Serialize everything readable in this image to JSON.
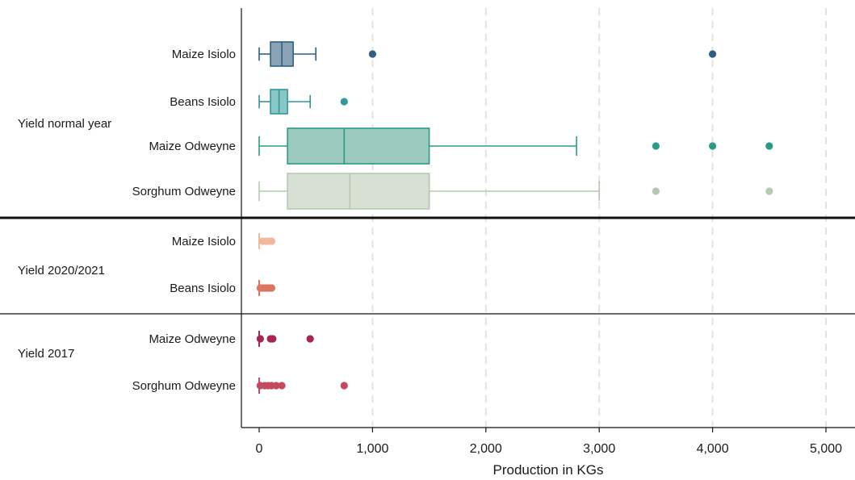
{
  "chart_data": {
    "type": "box",
    "orientation": "horizontal",
    "title": "",
    "xlabel": "Production in KGs",
    "ylabel": "",
    "xlim": [
      0,
      5000
    ],
    "xticks": [
      0,
      1000,
      2000,
      3000,
      4000,
      5000
    ],
    "xtick_labels": [
      "0",
      "1,000",
      "2,000",
      "3,000",
      "4,000",
      "5,000"
    ],
    "grid": "vertical dashed",
    "legend": "none",
    "groups": [
      {
        "name": "Yield normal year",
        "series": [
          {
            "name": "Maize Isiolo",
            "color": "#2e5f80",
            "fill": "#8aa3b6",
            "min": 0,
            "q1": 100,
            "median": 200,
            "q3": 300,
            "max": 500,
            "outliers": [
              1000,
              4000
            ]
          },
          {
            "name": "Beans Isiolo",
            "color": "#33979b",
            "fill": "#89c8c6",
            "min": 0,
            "q1": 100,
            "median": 175,
            "q3": 250,
            "max": 450,
            "outliers": [
              750
            ]
          },
          {
            "name": "Maize Odweyne",
            "color": "#2b9b85",
            "fill": "#9dcabf",
            "min": 0,
            "q1": 250,
            "median": 750,
            "q3": 1500,
            "max": 2800,
            "outliers": [
              3500,
              4000,
              4500
            ]
          },
          {
            "name": "Sorghum Odweyne",
            "color": "#b4c9b0",
            "fill": "#d8e0d3",
            "min": 0,
            "q1": 250,
            "median": 800,
            "q3": 1500,
            "max": 3000,
            "outliers": [
              3500,
              4500
            ]
          }
        ]
      },
      {
        "name": "Yield 2020/2021",
        "series": [
          {
            "name": "Maize Isiolo",
            "color": "#f2b79f",
            "fill": "#f2b79f",
            "min": 0,
            "q1": 0,
            "median": 0,
            "q3": 0,
            "max": 0,
            "outliers": [
              30,
              60,
              80,
              110
            ]
          },
          {
            "name": "Beans Isiolo",
            "color": "#dc7463",
            "fill": "#dc7463",
            "min": 0,
            "q1": 0,
            "median": 0,
            "q3": 0,
            "max": 0,
            "outliers": [
              10,
              30,
              50,
              70,
              90,
              110
            ]
          }
        ]
      },
      {
        "name": "Yield 2017",
        "series": [
          {
            "name": "Maize Odweyne",
            "color": "#a3274f",
            "fill": "#a3274f",
            "min": 0,
            "q1": 0,
            "median": 0,
            "q3": 0,
            "max": 0,
            "outliers": [
              10,
              100,
              120,
              450
            ]
          },
          {
            "name": "Sorghum Odweyne",
            "color": "#c44b5e",
            "fill": "#c44b5e",
            "min": 0,
            "q1": 0,
            "median": 0,
            "q3": 0,
            "max": 0,
            "outliers": [
              10,
              50,
              80,
              110,
              150,
              200,
              750
            ]
          }
        ]
      }
    ]
  }
}
